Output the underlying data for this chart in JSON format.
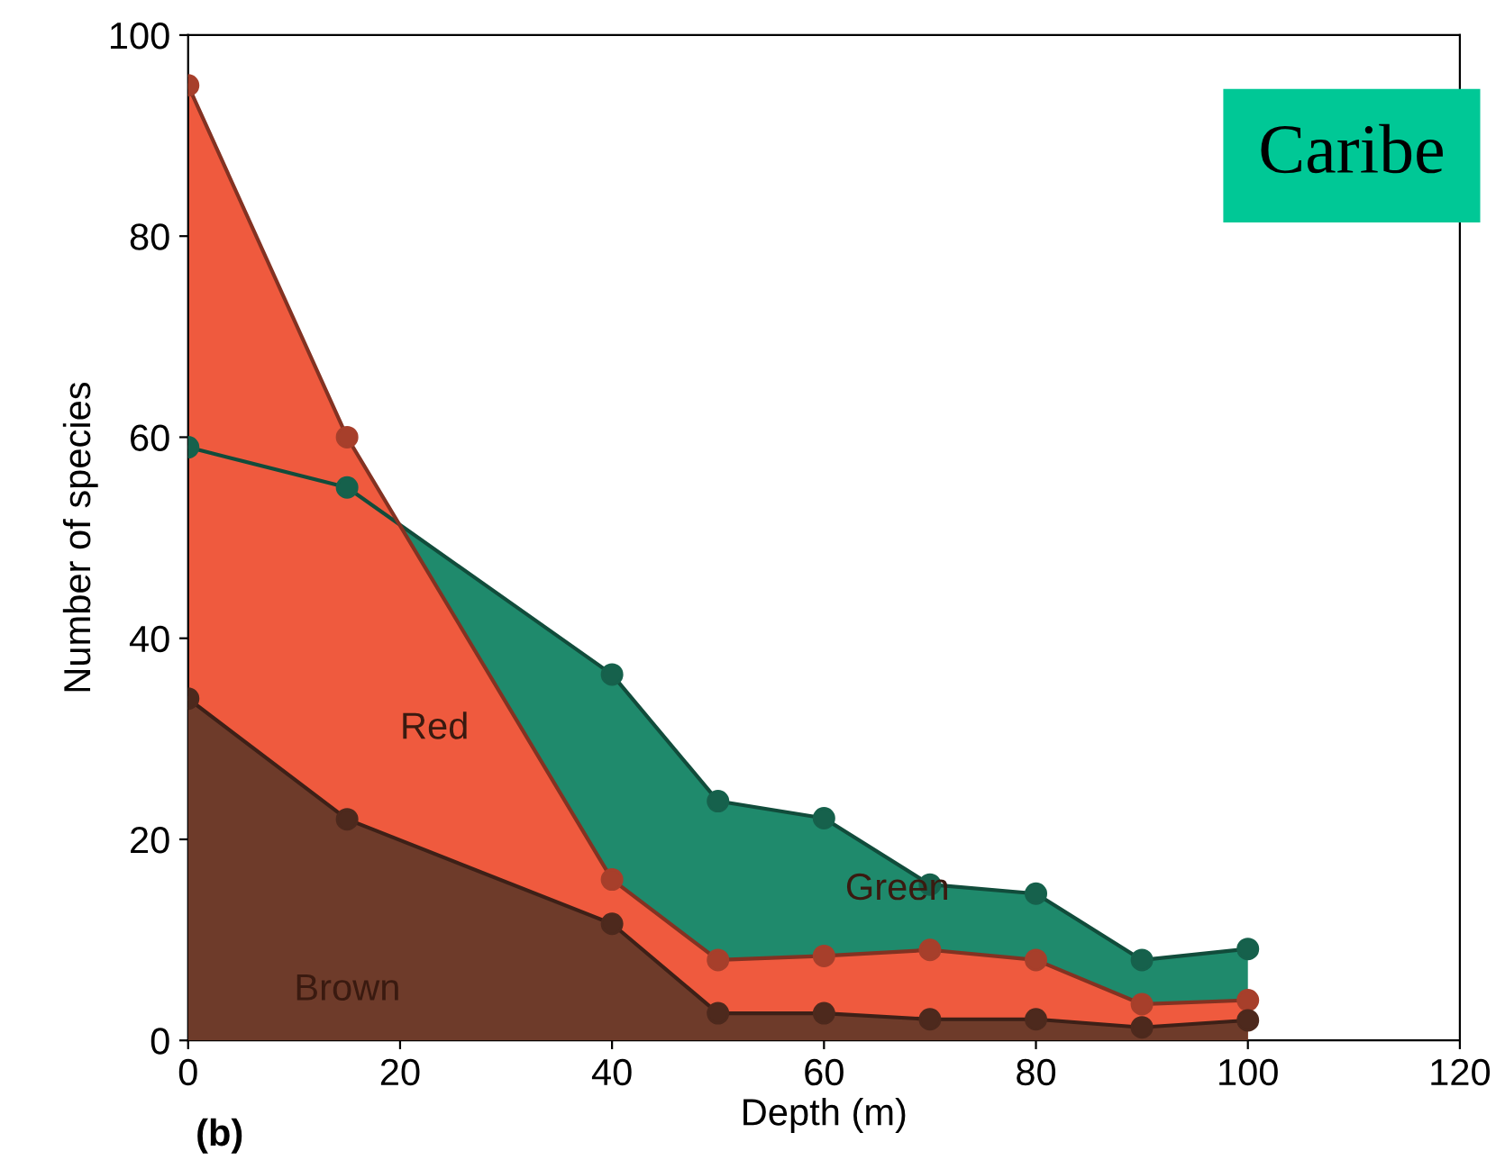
{
  "chart_data": {
    "type": "area",
    "xlabel": "Depth (m)",
    "ylabel": "Number of species",
    "x": [
      0,
      15,
      40,
      50,
      60,
      70,
      80,
      90,
      100
    ],
    "series": [
      {
        "name": "Green",
        "color": "#1f8a6c",
        "values": [
          59,
          55,
          36.4,
          23.8,
          22.1,
          15.5,
          14.6,
          8,
          9.1
        ]
      },
      {
        "name": "Red",
        "color": "#ef5a3e",
        "values": [
          95,
          60,
          16,
          8,
          8.4,
          9,
          8,
          3.6,
          4
        ]
      },
      {
        "name": "Brown",
        "color": "#6e3b2a",
        "values": [
          34,
          22,
          11.6,
          2.7,
          2.7,
          2.1,
          2.1,
          1.3,
          2
        ]
      }
    ],
    "xlim": [
      0,
      120
    ],
    "ylim": [
      0,
      100
    ],
    "xticks": [
      0,
      20,
      40,
      60,
      80,
      100,
      120
    ],
    "yticks": [
      0,
      20,
      40,
      60,
      80,
      100
    ],
    "marker": "circle",
    "grid": false,
    "legend": false,
    "annotations": [
      "Caribe",
      "(b)"
    ]
  }
}
